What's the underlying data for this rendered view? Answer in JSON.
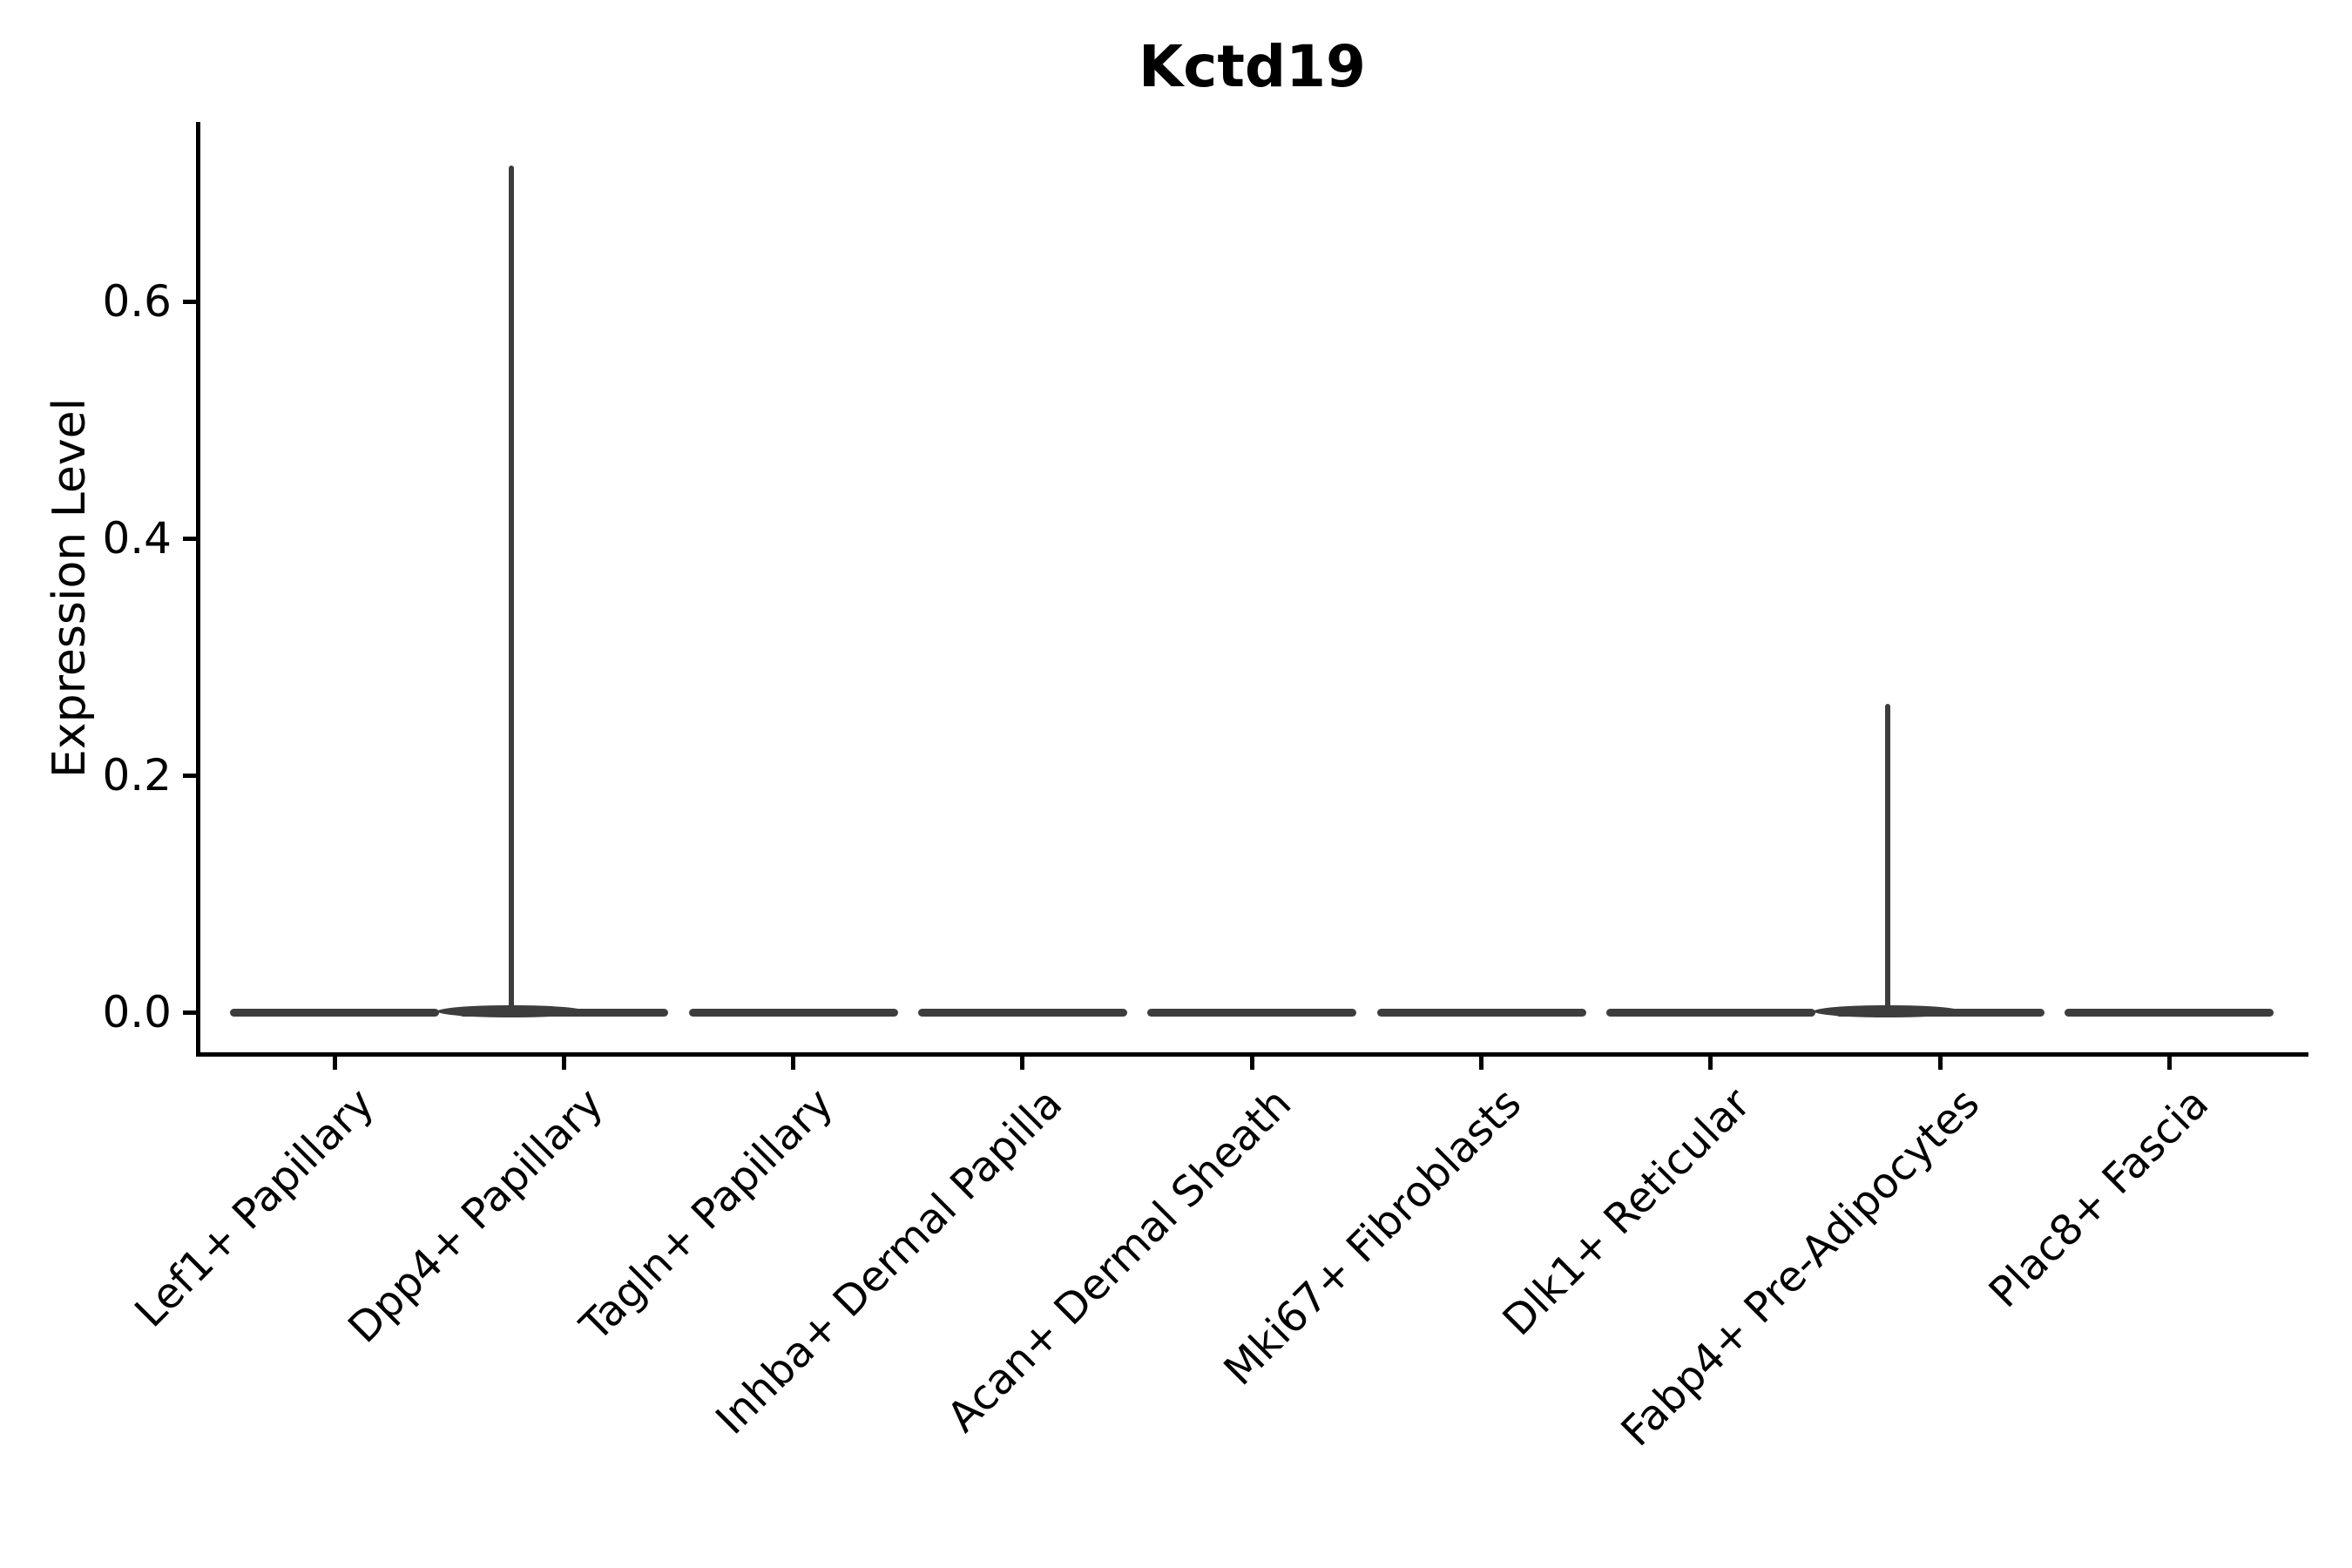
{
  "chart_data": {
    "type": "violin",
    "title": "Kctd19",
    "xlabel": "",
    "ylabel": "Expression Level",
    "categories": [
      "Lef1+ Papillary",
      "Dpp4+ Papillary",
      "Tagln+ Papillary",
      "Inhba+ Dermal Papilla",
      "Acan+ Dermal Sheath",
      "Mki67+ Fibroblasts",
      "Dlk1+ Reticular",
      "Fabp4+ Pre-Adipocytes",
      "Plac8+ Fascia"
    ],
    "violins": [
      {
        "category": "Lef1+ Papillary",
        "max_expression": 0.0,
        "bulk_at": 0.0
      },
      {
        "category": "Dpp4+ Papillary",
        "max_expression": 0.715,
        "bulk_at": 0.0
      },
      {
        "category": "Tagln+ Papillary",
        "max_expression": 0.0,
        "bulk_at": 0.0
      },
      {
        "category": "Inhba+ Dermal Papilla",
        "max_expression": 0.0,
        "bulk_at": 0.0
      },
      {
        "category": "Acan+ Dermal Sheath",
        "max_expression": 0.0,
        "bulk_at": 0.0
      },
      {
        "category": "Mki67+ Fibroblasts",
        "max_expression": 0.0,
        "bulk_at": 0.0
      },
      {
        "category": "Dlk1+ Reticular",
        "max_expression": 0.0,
        "bulk_at": 0.0
      },
      {
        "category": "Fabp4+ Pre-Adipocytes",
        "max_expression": 0.26,
        "bulk_at": 0.0
      },
      {
        "category": "Plac8+ Fascia",
        "max_expression": 0.0,
        "bulk_at": 0.0
      }
    ],
    "yticks": [
      "0.0",
      "0.2",
      "0.4",
      "0.6"
    ],
    "ytick_values": [
      0.0,
      0.2,
      0.4,
      0.6
    ],
    "ylim": [
      -0.035,
      0.75
    ],
    "grid": false,
    "legend": "none",
    "style": {
      "background": "#ffffff",
      "axis_color": "#000000",
      "text_color": "#000000",
      "violin_color": "#3d3d3d",
      "x_label_rotation_deg": 45,
      "spike_x_offset_frac": -0.23
    }
  }
}
